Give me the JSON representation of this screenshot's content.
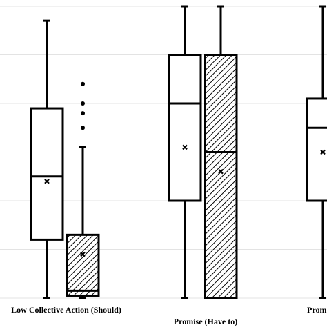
{
  "chart_data": {
    "type": "box",
    "title": "",
    "xlabel": "",
    "ylabel": "",
    "ylim": [
      0,
      6
    ],
    "grid": true,
    "categories": [
      "Low Collective Action (Should)",
      "Promise (Have to)",
      "Prom"
    ],
    "series": [
      {
        "pattern": "plain",
        "color": "#000000"
      },
      {
        "pattern": "hatched",
        "color": "#000000"
      }
    ],
    "boxes": [
      {
        "category": 0,
        "series": 0,
        "min": 0,
        "q1": 1.2,
        "median": 2.5,
        "q3": 3.9,
        "max": 5.7,
        "mean": 2.4,
        "outliers": []
      },
      {
        "category": 0,
        "series": 1,
        "min": 0,
        "q1": 0.05,
        "median": 0.15,
        "q3": 1.3,
        "max": 3.1,
        "mean": 0.9,
        "outliers": [
          3.5,
          3.8,
          4.0,
          4.4
        ]
      },
      {
        "category": 1,
        "series": 0,
        "min": 0,
        "q1": 2.0,
        "median": 4.0,
        "q3": 5.0,
        "max": 6.0,
        "mean": 3.1,
        "outliers": []
      },
      {
        "category": 1,
        "series": 1,
        "min": 0,
        "q1": 0,
        "median": 3.0,
        "q3": 5.0,
        "max": 6.0,
        "mean": 2.6,
        "outliers": []
      },
      {
        "category": 2,
        "series": 0,
        "min": 0,
        "q1": 2.0,
        "median": 3.5,
        "q3": 4.1,
        "max": 6.0,
        "mean": 3.0,
        "outliers": []
      }
    ]
  }
}
